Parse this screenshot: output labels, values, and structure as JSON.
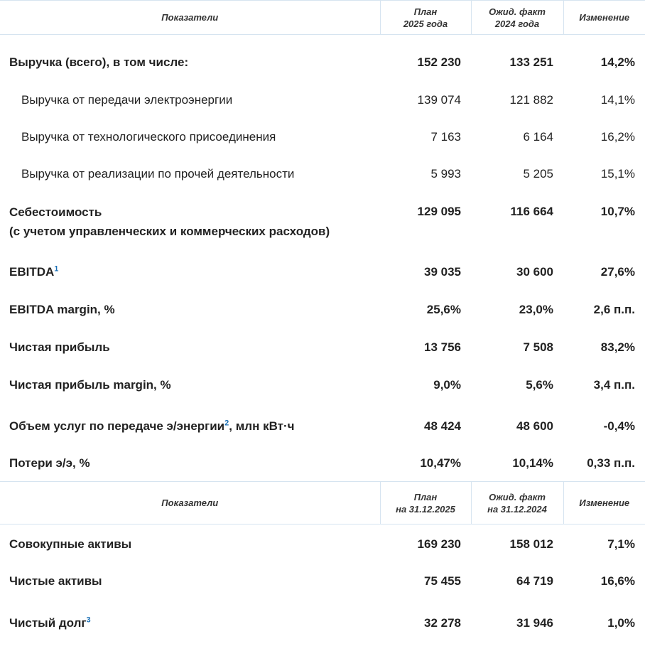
{
  "table1": {
    "headers": [
      "Показатели",
      "План\n2025 года",
      "Ожид. факт\n2024 года",
      "Изменение"
    ],
    "header_lines": {
      "plan": [
        "План",
        "2025 года"
      ],
      "fact": [
        "Ожид. факт",
        "2024 года"
      ]
    },
    "rows": [
      {
        "label": "Выручка (всего), в том числе:",
        "plan": "152 230",
        "fact": "133 251",
        "change": "14,2%"
      },
      {
        "label": "Выручка от передачи электроэнергии",
        "plan": "139 074",
        "fact": "121 882",
        "change": "14,1%"
      },
      {
        "label": "Выручка от технологического присоединения",
        "plan": "7 163",
        "fact": "6 164",
        "change": "16,2%"
      },
      {
        "label": "Выручка от реализации по прочей деятельности",
        "plan": "5 993",
        "fact": "5 205",
        "change": "15,1%"
      },
      {
        "label": "Себестоимость",
        "label2": "(с учетом управленческих и коммерческих расходов)",
        "plan": "129 095",
        "fact": "116 664",
        "change": "10,7%"
      },
      {
        "label": "EBITDA",
        "sup": "1",
        "plan": "39 035",
        "fact": "30 600",
        "change": "27,6%"
      },
      {
        "label": "EBITDA margin, %",
        "plan": "25,6%",
        "fact": "23,0%",
        "change": "2,6 п.п."
      },
      {
        "label": "Чистая прибыль",
        "plan": "13 756",
        "fact": "7 508",
        "change": "83,2%"
      },
      {
        "label": "Чистая прибыль margin, %",
        "plan": "9,0%",
        "fact": "5,6%",
        "change": "3,4 п.п."
      },
      {
        "label": "Объем услуг по передаче э/энергии",
        "sup": "2",
        "label_suffix": ", млн кВт·ч",
        "plan": "48 424",
        "fact": "48 600",
        "change": "-0,4%"
      },
      {
        "label": "Потери э/э, %",
        "plan": "10,47%",
        "fact": "10,14%",
        "change": "0,33 п.п."
      }
    ]
  },
  "table2": {
    "header_lines": {
      "indicators": "Показатели",
      "plan": [
        "План",
        "на 31.12.2025"
      ],
      "fact": [
        "Ожид. факт",
        "на 31.12.2024"
      ],
      "change": "Изменение"
    },
    "rows": [
      {
        "label": "Совокупные активы",
        "plan": "169 230",
        "fact": "158 012",
        "change": "7,1%"
      },
      {
        "label": "Чистые активы",
        "plan": "75 455",
        "fact": "64 719",
        "change": "16,6%"
      },
      {
        "label": "Чистый долг",
        "sup": "3",
        "plan": "32 278",
        "fact": "31 946",
        "change": "1,0%"
      }
    ]
  }
}
